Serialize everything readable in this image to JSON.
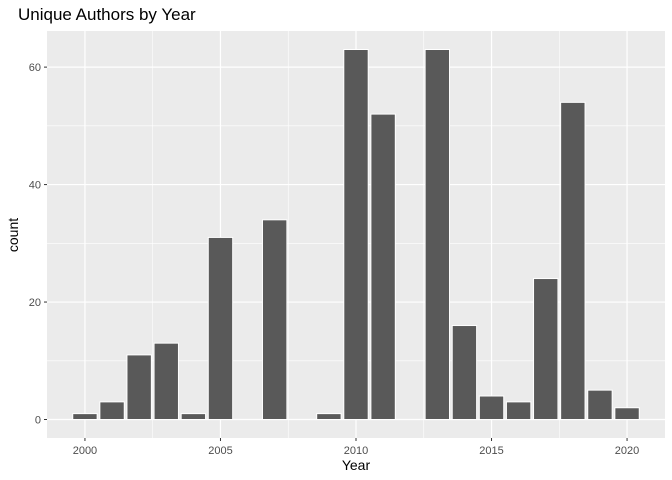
{
  "chart_data": {
    "type": "bar",
    "title": "Unique Authors by Year",
    "xlabel": "Year",
    "ylabel": "count",
    "x": [
      2000,
      2001,
      2002,
      2003,
      2004,
      2005,
      2007,
      2009,
      2010,
      2011,
      2013,
      2014,
      2015,
      2016,
      2017,
      2018,
      2019,
      2020
    ],
    "values": [
      1,
      3,
      11,
      13,
      1,
      31,
      34,
      1,
      63,
      52,
      63,
      16,
      4,
      3,
      24,
      54,
      5,
      2
    ],
    "xlim": [
      1998.6,
      2021.4
    ],
    "ylim": [
      -3.15,
      66.15
    ],
    "x_ticks": [
      2000,
      2005,
      2010,
      2015,
      2020
    ],
    "y_ticks": [
      0,
      20,
      40,
      60
    ],
    "x_tick_labels": [
      "2000",
      "2005",
      "2010",
      "2015",
      "2020"
    ],
    "y_tick_labels": [
      "0",
      "20",
      "40",
      "60"
    ],
    "grid": true,
    "bar_color": "#595959",
    "bar_edge_color": "#ffffff",
    "panel_color": "#ebebeb",
    "grid_color": "#ffffff"
  }
}
